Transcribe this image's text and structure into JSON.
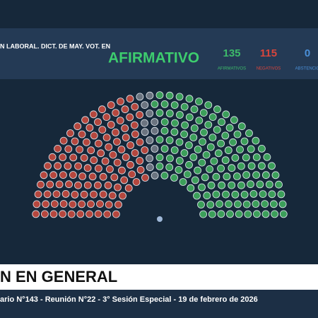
{
  "header": {
    "motion": "N LABORAL. DICT. DE MAY. VOT. EN",
    "result": "AFIRMATIVO",
    "votes": [
      {
        "count": 135,
        "label": "AFIRMATIVOS",
        "color": "#3dbb6a"
      },
      {
        "count": 115,
        "label": "NEGATIVOS",
        "color": "#d8453c"
      },
      {
        "count": 0,
        "label": "ABSTENCIO",
        "color": "#4a8fd8"
      }
    ]
  },
  "footer": {
    "title": "N EN GENERAL",
    "subtitle": "ario N°143 - Reunión N°22 - 3° Sesión Especial - 19 de febrero de 2026"
  }
}
